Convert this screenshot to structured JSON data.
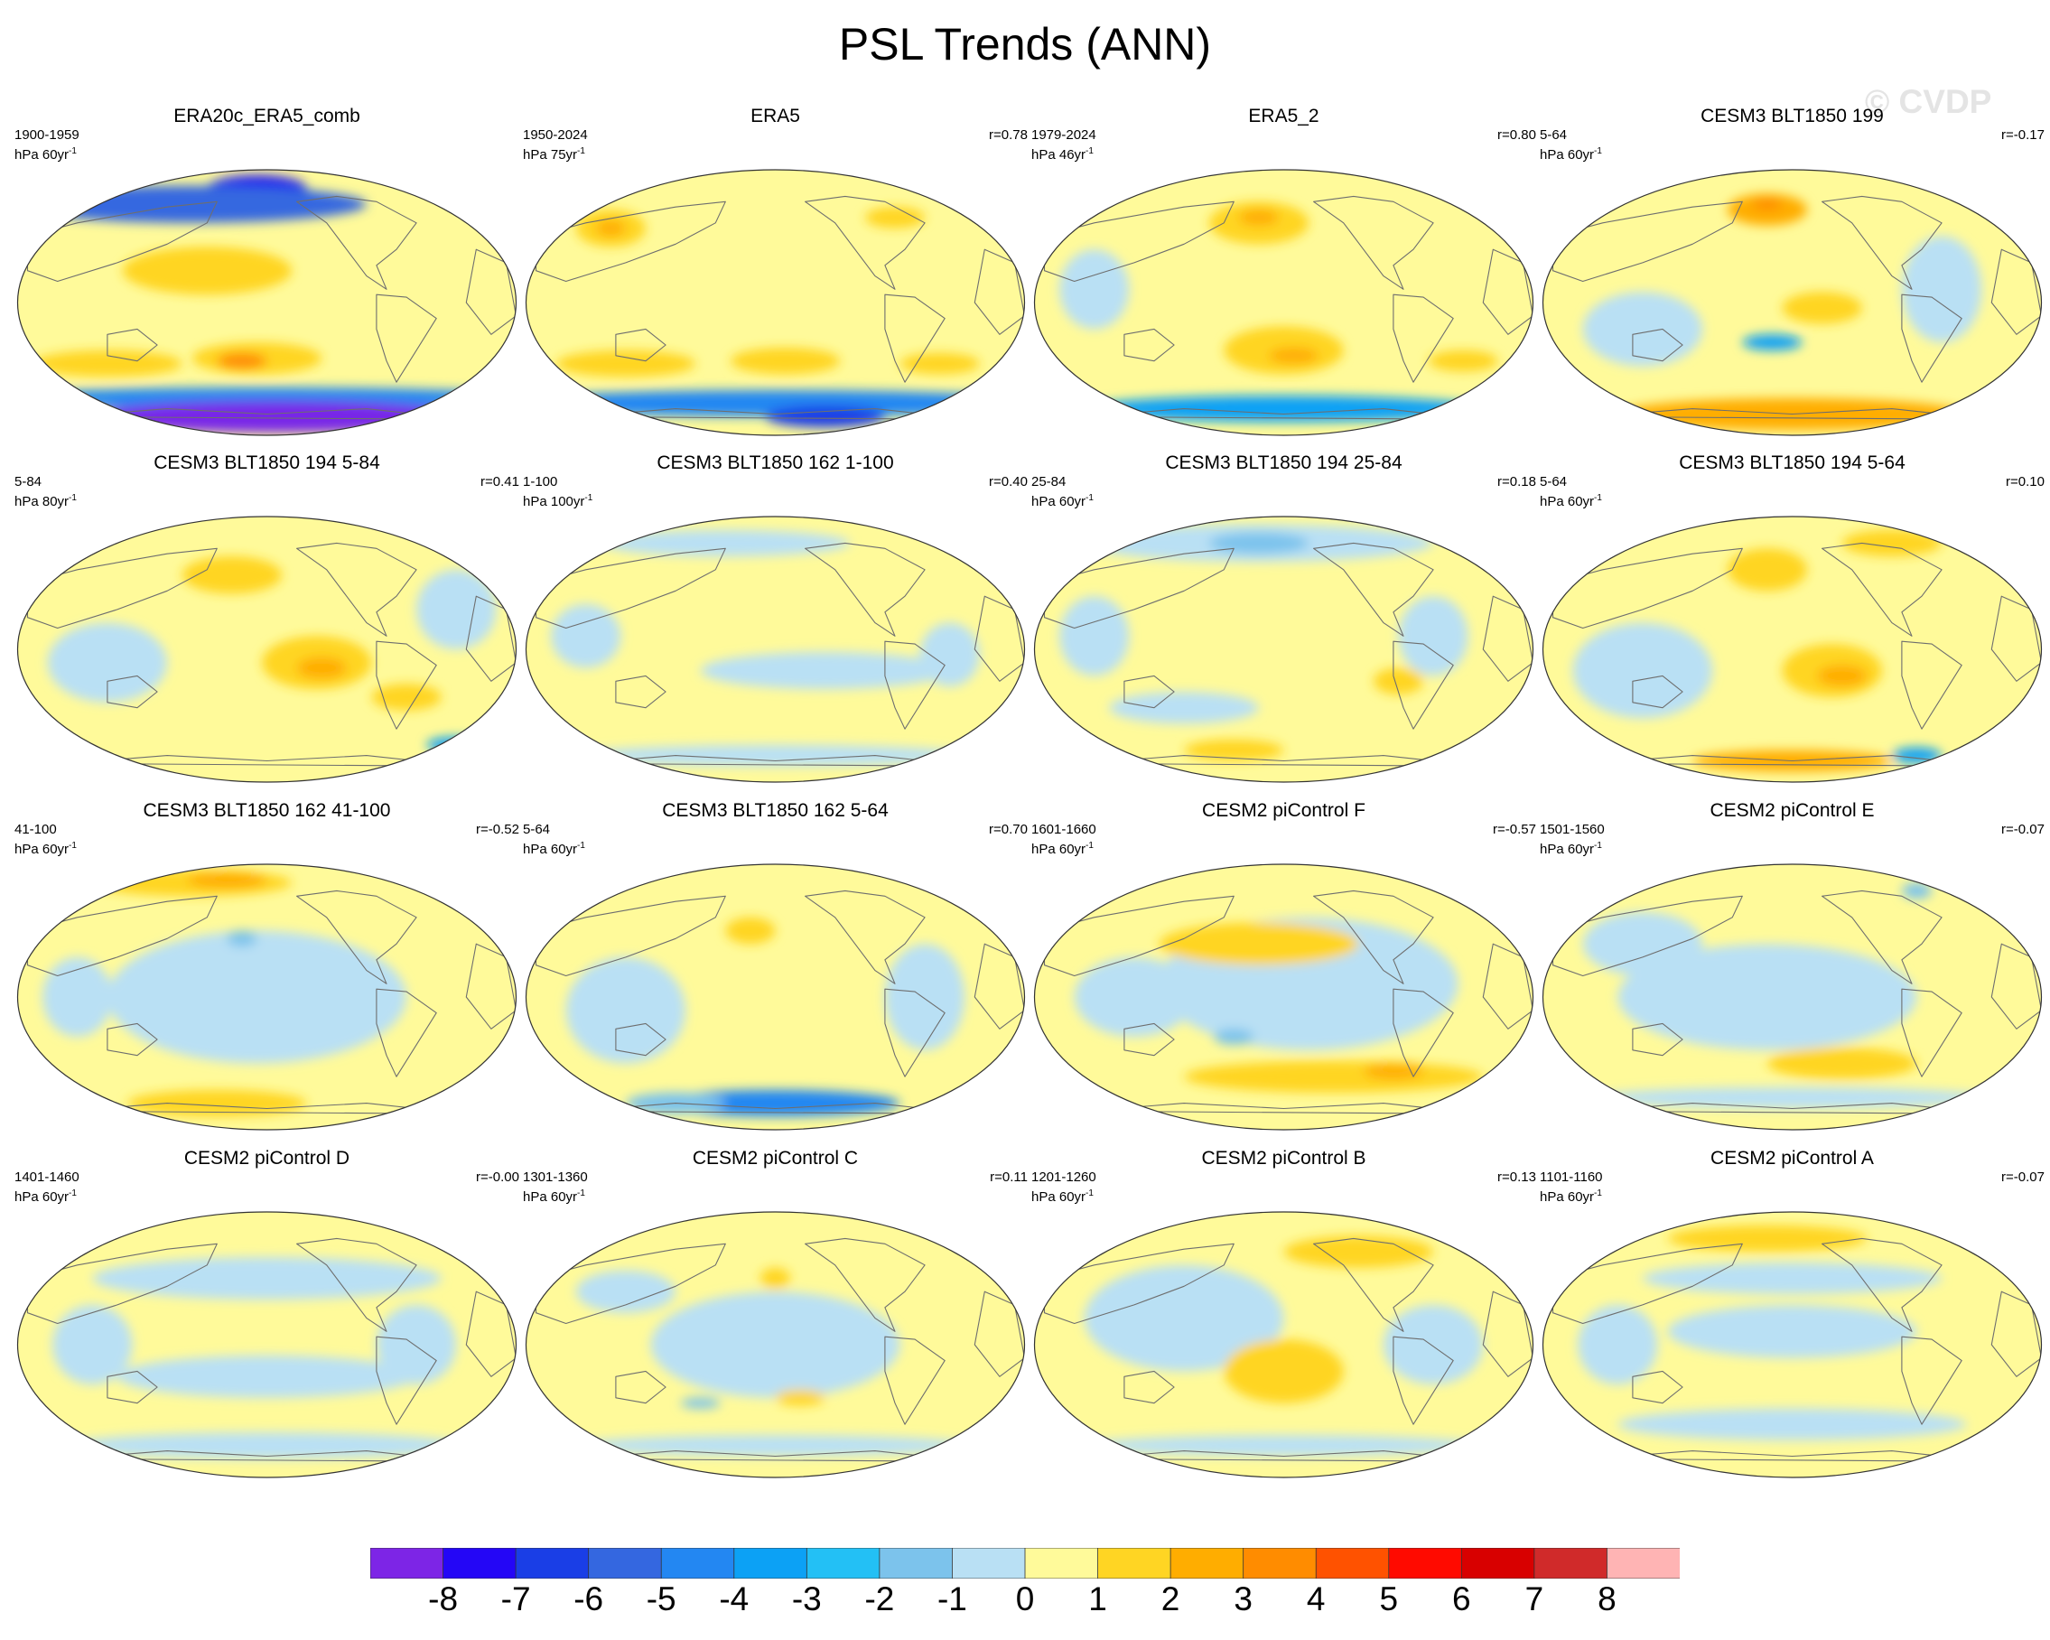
{
  "title": "PSL Trends (ANN)",
  "watermark": "© CVDP",
  "unit_prefix": "hPa",
  "unit_suffix": "yr",
  "unit_exponent": "-1",
  "chart_data": {
    "type": "contour-map-grid",
    "title": "PSL Trends (ANN)",
    "projection": "Robinson (Pacific-centered)",
    "layout": "4 rows x 4 columns",
    "panels": [
      {
        "title": "ERA20c_ERA5_comb",
        "years": "1900-1959",
        "trend_period": "60",
        "r": "",
        "blobs": [
          [
            "#2418f0",
            0.48,
            0.07,
            0.1,
            0.05
          ],
          [
            "#3467e0",
            0.35,
            0.13,
            0.35,
            0.07
          ],
          [
            "#ffd523",
            0.38,
            0.38,
            0.17,
            0.09
          ],
          [
            "#ffd523",
            0.18,
            0.73,
            0.15,
            0.05
          ],
          [
            "#ffd523",
            0.48,
            0.71,
            0.13,
            0.06
          ],
          [
            "#ff8c00",
            0.45,
            0.72,
            0.05,
            0.03
          ],
          [
            "#2387f2",
            0.5,
            0.86,
            0.55,
            0.04
          ],
          [
            "#7825e8",
            0.52,
            0.93,
            0.38,
            0.06
          ]
        ]
      },
      {
        "title": "ERA5",
        "years": "1950-2024",
        "trend_period": "75",
        "r": "r=0.78",
        "blobs": [
          [
            "#ffd523",
            0.17,
            0.22,
            0.07,
            0.07
          ],
          [
            "#ffad00",
            0.17,
            0.22,
            0.03,
            0.03
          ],
          [
            "#ffd523",
            0.74,
            0.18,
            0.06,
            0.04
          ],
          [
            "#ffd523",
            0.2,
            0.73,
            0.14,
            0.05
          ],
          [
            "#ffd523",
            0.52,
            0.72,
            0.11,
            0.05
          ],
          [
            "#ffd523",
            0.83,
            0.73,
            0.08,
            0.04
          ],
          [
            "#2387f2",
            0.5,
            0.88,
            0.55,
            0.05
          ],
          [
            "#1a3ee6",
            0.6,
            0.93,
            0.12,
            0.04
          ]
        ]
      },
      {
        "title": "ERA5_2",
        "years": "1979-2024",
        "trend_period": "46",
        "r": "r=0.80",
        "blobs": [
          [
            "#ffd523",
            0.45,
            0.2,
            0.1,
            0.08
          ],
          [
            "#ffad00",
            0.45,
            0.18,
            0.04,
            0.03
          ],
          [
            "#ffd523",
            0.5,
            0.68,
            0.12,
            0.09
          ],
          [
            "#ffad00",
            0.52,
            0.7,
            0.05,
            0.03
          ],
          [
            "#ffd523",
            0.86,
            0.72,
            0.07,
            0.04
          ],
          [
            "#0ca1f5",
            0.5,
            0.9,
            0.4,
            0.05
          ],
          [
            "#b9e0f4",
            0.12,
            0.45,
            0.07,
            0.15
          ]
        ]
      },
      {
        "title": "CESM3 BLT1850 199",
        "years": "5-64",
        "trend_period": "60",
        "r": "r=-0.17",
        "blobs": [
          [
            "#ffad00",
            0.45,
            0.15,
            0.08,
            0.06
          ],
          [
            "#ff8c00",
            0.45,
            0.13,
            0.03,
            0.02
          ],
          [
            "#ffd523",
            0.56,
            0.52,
            0.08,
            0.06
          ],
          [
            "#b9e0f4",
            0.2,
            0.6,
            0.12,
            0.14
          ],
          [
            "#0ca1f5",
            0.46,
            0.65,
            0.06,
            0.03
          ],
          [
            "#ffad00",
            0.5,
            0.92,
            0.35,
            0.06
          ],
          [
            "#b9e0f4",
            0.8,
            0.45,
            0.08,
            0.2
          ]
        ]
      },
      {
        "title": "CESM3 BLT1850 194 5-84",
        "years": "5-84",
        "trend_period": "80",
        "r": "r=0.41",
        "blobs": [
          [
            "#ffd523",
            0.43,
            0.22,
            0.1,
            0.07
          ],
          [
            "#ffd523",
            0.6,
            0.55,
            0.11,
            0.1
          ],
          [
            "#ffad00",
            0.61,
            0.57,
            0.05,
            0.04
          ],
          [
            "#ffd523",
            0.78,
            0.68,
            0.07,
            0.05
          ],
          [
            "#b9e0f4",
            0.18,
            0.55,
            0.12,
            0.15
          ],
          [
            "#0ca1f5",
            0.88,
            0.86,
            0.06,
            0.03
          ],
          [
            "#b9e0f4",
            0.88,
            0.35,
            0.08,
            0.15
          ]
        ]
      },
      {
        "title": "CESM3 BLT1850 162 1-100",
        "years": "1-100",
        "trend_period": "100",
        "r": "r=0.40",
        "blobs": [
          [
            "#b9e0f4",
            0.4,
            0.1,
            0.25,
            0.05
          ],
          [
            "#b9e0f4",
            0.12,
            0.45,
            0.07,
            0.12
          ],
          [
            "#b9e0f4",
            0.6,
            0.58,
            0.25,
            0.07
          ],
          [
            "#b9e0f4",
            0.85,
            0.52,
            0.06,
            0.12
          ],
          [
            "#b9e0f4",
            0.5,
            0.9,
            0.4,
            0.04
          ]
        ]
      },
      {
        "title": "CESM3 BLT1850 194 25-84",
        "years": "25-84",
        "trend_period": "60",
        "r": "r=0.18",
        "blobs": [
          [
            "#b9e0f4",
            0.45,
            0.1,
            0.35,
            0.07
          ],
          [
            "#7cc3ec",
            0.45,
            0.1,
            0.1,
            0.04
          ],
          [
            "#b9e0f4",
            0.12,
            0.45,
            0.07,
            0.15
          ],
          [
            "#b9e0f4",
            0.8,
            0.45,
            0.07,
            0.15
          ],
          [
            "#ffd523",
            0.73,
            0.62,
            0.05,
            0.05
          ],
          [
            "#b9e0f4",
            0.3,
            0.72,
            0.15,
            0.06
          ],
          [
            "#ffd523",
            0.4,
            0.88,
            0.1,
            0.04
          ]
        ]
      },
      {
        "title": "CESM3 BLT1850 194 5-64",
        "years": "5-64",
        "trend_period": "60",
        "r": "r=0.10",
        "blobs": [
          [
            "#ffd523",
            0.45,
            0.2,
            0.08,
            0.08
          ],
          [
            "#ffd523",
            0.58,
            0.58,
            0.1,
            0.1
          ],
          [
            "#ffad00",
            0.6,
            0.6,
            0.05,
            0.04
          ],
          [
            "#b9e0f4",
            0.2,
            0.58,
            0.14,
            0.18
          ],
          [
            "#ffad00",
            0.5,
            0.92,
            0.2,
            0.04
          ],
          [
            "#0ca1f5",
            0.75,
            0.9,
            0.05,
            0.03
          ],
          [
            "#ffd523",
            0.7,
            0.1,
            0.1,
            0.05
          ]
        ]
      },
      {
        "title": "CESM3 BLT1850 162 41-100",
        "years": "41-100",
        "trend_period": "60",
        "r": "r=-0.52",
        "blobs": [
          [
            "#b9e0f4",
            0.48,
            0.5,
            0.3,
            0.25
          ],
          [
            "#ffd523",
            0.35,
            0.07,
            0.2,
            0.05
          ],
          [
            "#ffad00",
            0.42,
            0.06,
            0.08,
            0.03
          ],
          [
            "#7cc3ec",
            0.45,
            0.28,
            0.03,
            0.03
          ],
          [
            "#ffd523",
            0.4,
            0.9,
            0.18,
            0.05
          ],
          [
            "#b9e0f4",
            0.12,
            0.5,
            0.07,
            0.15
          ]
        ]
      },
      {
        "title": "CESM3 BLT1850 162 5-64",
        "years": "5-64",
        "trend_period": "60",
        "r": "r=0.70",
        "blobs": [
          [
            "#ffd523",
            0.45,
            0.25,
            0.05,
            0.05
          ],
          [
            "#b9e0f4",
            0.2,
            0.55,
            0.12,
            0.2
          ],
          [
            "#b9e0f4",
            0.8,
            0.5,
            0.08,
            0.2
          ],
          [
            "#2387f2",
            0.5,
            0.9,
            0.25,
            0.05
          ],
          [
            "#7cc3ec",
            0.3,
            0.9,
            0.1,
            0.04
          ]
        ]
      },
      {
        "title": "CESM2 piControl F",
        "years": "1601-1660",
        "trend_period": "60",
        "r": "r=-0.57",
        "blobs": [
          [
            "#b9e0f4",
            0.55,
            0.45,
            0.3,
            0.25
          ],
          [
            "#b9e0f4",
            0.2,
            0.5,
            0.12,
            0.15
          ],
          [
            "#ffd523",
            0.45,
            0.3,
            0.2,
            0.08
          ],
          [
            "#ffd523",
            0.6,
            0.8,
            0.3,
            0.06
          ],
          [
            "#ffad00",
            0.72,
            0.78,
            0.06,
            0.03
          ],
          [
            "#7cc3ec",
            0.4,
            0.65,
            0.04,
            0.03
          ]
        ]
      },
      {
        "title": "CESM2 piControl E",
        "years": "1501-1560",
        "trend_period": "60",
        "r": "r=-0.07",
        "blobs": [
          [
            "#b9e0f4",
            0.45,
            0.5,
            0.3,
            0.2
          ],
          [
            "#b9e0f4",
            0.2,
            0.3,
            0.12,
            0.12
          ],
          [
            "#ffd523",
            0.6,
            0.75,
            0.15,
            0.06
          ],
          [
            "#b9e0f4",
            0.5,
            0.88,
            0.4,
            0.04
          ],
          [
            "#7cc3ec",
            0.75,
            0.1,
            0.03,
            0.03
          ]
        ]
      },
      {
        "title": "CESM2 piControl D",
        "years": "1401-1460",
        "trend_period": "60",
        "r": "r=-0.00",
        "blobs": [
          [
            "#b9e0f4",
            0.5,
            0.25,
            0.35,
            0.08
          ],
          [
            "#b9e0f4",
            0.5,
            0.62,
            0.3,
            0.08
          ],
          [
            "#b9e0f4",
            0.15,
            0.5,
            0.08,
            0.15
          ],
          [
            "#b9e0f4",
            0.8,
            0.5,
            0.08,
            0.15
          ],
          [
            "#b9e0f4",
            0.5,
            0.88,
            0.4,
            0.05
          ]
        ]
      },
      {
        "title": "CESM2 piControl C",
        "years": "1301-1360",
        "trend_period": "60",
        "r": "r=0.11",
        "blobs": [
          [
            "#b9e0f4",
            0.5,
            0.5,
            0.25,
            0.2
          ],
          [
            "#b9e0f4",
            0.2,
            0.3,
            0.1,
            0.08
          ],
          [
            "#ffd523",
            0.5,
            0.25,
            0.03,
            0.04
          ],
          [
            "#ffd523",
            0.55,
            0.7,
            0.05,
            0.03
          ],
          [
            "#7cc3ec",
            0.35,
            0.72,
            0.04,
            0.02
          ],
          [
            "#b9e0f4",
            0.5,
            0.88,
            0.4,
            0.04
          ]
        ]
      },
      {
        "title": "CESM2 piControl B",
        "years": "1201-1260",
        "trend_period": "60",
        "r": "r=0.13",
        "blobs": [
          [
            "#b9e0f4",
            0.3,
            0.4,
            0.2,
            0.2
          ],
          [
            "#b9e0f4",
            0.8,
            0.5,
            0.1,
            0.15
          ],
          [
            "#ffd523",
            0.65,
            0.15,
            0.15,
            0.06
          ],
          [
            "#ffd523",
            0.5,
            0.6,
            0.12,
            0.12
          ],
          [
            "#b9e0f4",
            0.5,
            0.88,
            0.4,
            0.04
          ]
        ]
      },
      {
        "title": "CESM2 piControl A",
        "years": "1101-1160",
        "trend_period": "60",
        "r": "r=-0.07",
        "blobs": [
          [
            "#b9e0f4",
            0.5,
            0.45,
            0.25,
            0.1
          ],
          [
            "#b9e0f4",
            0.5,
            0.25,
            0.3,
            0.06
          ],
          [
            "#ffd523",
            0.45,
            0.1,
            0.2,
            0.05
          ],
          [
            "#b9e0f4",
            0.15,
            0.5,
            0.08,
            0.15
          ],
          [
            "#b9e0f4",
            0.5,
            0.8,
            0.35,
            0.06
          ]
        ]
      }
    ],
    "colorbar": {
      "levels": [
        "-8",
        "-7",
        "-6",
        "-5",
        "-4",
        "-3",
        "-2",
        "-1",
        "0",
        "1",
        "2",
        "3",
        "4",
        "5",
        "6",
        "7",
        "8"
      ],
      "colors": [
        "#7d25e6",
        "#2406f6",
        "#1a3ee6",
        "#3467e0",
        "#2387f2",
        "#0ca1f5",
        "#23c0f5",
        "#7cc3ec",
        "#b9e0f4",
        "#fffa9a",
        "#ffd523",
        "#ffad00",
        "#ff8c00",
        "#ff5200",
        "#ff0a00",
        "#d80000",
        "#d02a2a",
        "#ffb4b4"
      ]
    }
  }
}
